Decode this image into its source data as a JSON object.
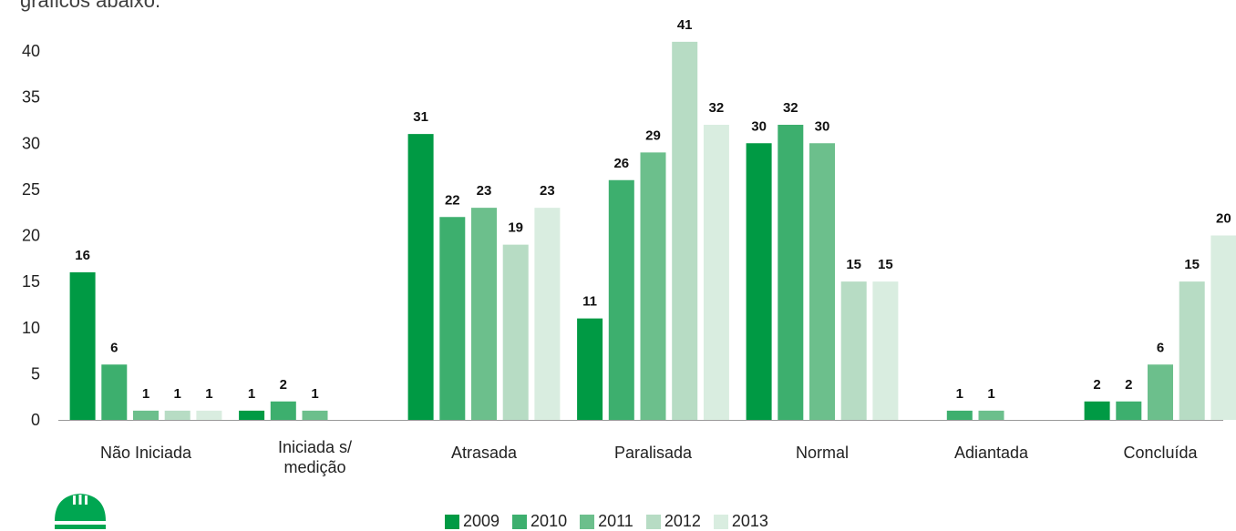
{
  "page": {
    "cut_text": "gráficos abaixo."
  },
  "chart_data": {
    "type": "bar",
    "categories": [
      "Não Iniciada",
      "Iniciada s/ medição",
      "Atrasada",
      "Paralisada",
      "Normal",
      "Adiantada",
      "Concluída"
    ],
    "category_lines": [
      [
        "Não Iniciada"
      ],
      [
        "Iniciada s/",
        "medição"
      ],
      [
        "Atrasada"
      ],
      [
        "Paralisada"
      ],
      [
        "Normal"
      ],
      [
        "Adiantada"
      ],
      [
        "Concluída"
      ]
    ],
    "series": [
      {
        "name": "2009",
        "color": "#009a44",
        "values": [
          16,
          1,
          31,
          11,
          30,
          null,
          2
        ]
      },
      {
        "name": "2010",
        "color": "#3daf6e",
        "values": [
          6,
          2,
          22,
          26,
          32,
          1,
          2
        ]
      },
      {
        "name": "2011",
        "color": "#6cbf8c",
        "values": [
          1,
          1,
          23,
          29,
          30,
          1,
          6
        ]
      },
      {
        "name": "2012",
        "color": "#b7dcc4",
        "values": [
          1,
          null,
          19,
          41,
          15,
          null,
          15
        ]
      },
      {
        "name": "2013",
        "color": "#d9ede0",
        "values": [
          1,
          null,
          23,
          32,
          15,
          null,
          20
        ]
      }
    ],
    "yticks": [
      0,
      5,
      10,
      15,
      20,
      25,
      30,
      35,
      40
    ],
    "ylim": [
      0,
      40
    ],
    "grid": false,
    "legend": "bottom"
  }
}
